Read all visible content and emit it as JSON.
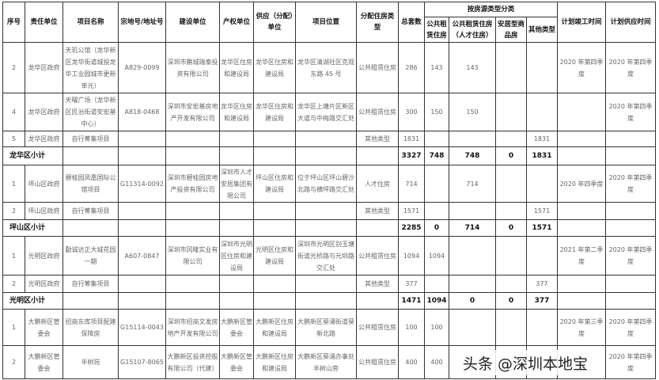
{
  "headers": {
    "no": "序号",
    "unit": "责任单位",
    "name": "项目名称",
    "parcel": "宗地号/地址号",
    "builder": "建设单位",
    "owner": "产权单位",
    "supplier": "供应（分配）单位",
    "location": "项目位置",
    "type": "分配住房类型",
    "total": "总套数",
    "group": "按房源类型分类",
    "pub": "公共租赁住房",
    "talent": "公共租赁住房（人才住房）",
    "resettle": "安居型商品房",
    "other": "其他类型",
    "finish": "计划竣工时间",
    "supply": "计划供应时间"
  },
  "rows": [
    {
      "kind": "row",
      "cells": [
        "2",
        "龙华区政府",
        "天玑公馆（龙华新区龙华街道城投龙华工业园城市更新单元）",
        "A829-0099",
        "深圳市鹏城瑞泰投资有限公司",
        "龙华区住房和建设局",
        "龙华区住房和建设局",
        "龙华区清湖社区克观东路 45 号",
        "公共租赁住房",
        "286",
        "143",
        "143",
        "",
        "",
        "2020 年第四季度",
        "2020 年第四季度"
      ]
    },
    {
      "kind": "row",
      "cells": [
        "4",
        "龙华区政府",
        "天曜广场（龙华新区民治街道安宏基中心）",
        "A818-0468",
        "深圳市安宏基房地产开发有限公司",
        "龙华区住房和建设局",
        "龙华区住房和建设局",
        "龙华区上塘片区新区大道与中梅路交汇处",
        "公共租赁住房",
        "300",
        "150",
        "150",
        "",
        "",
        "",
        "2020 年第四季度"
      ]
    },
    {
      "kind": "row",
      "cells": [
        "5",
        "龙华区政府",
        "自行筹集项目",
        "",
        "",
        "",
        "",
        "",
        "其他类型",
        "1831",
        "",
        "",
        "",
        "1831",
        "",
        ""
      ]
    },
    {
      "kind": "sub",
      "label": "龙华区小计",
      "cells": [
        "3327",
        "748",
        "748",
        "0",
        "1831"
      ]
    },
    {
      "kind": "row",
      "cells": [
        "1",
        "坪山区政府",
        "碧桂园凤凰国际公馆项目",
        "G11314-0092",
        "深圳市碧桂园房地产投资有限公司",
        "深圳市人才安居集团有限公司",
        "坪山区住房和建设局",
        "位于坪山区坪山碧沙北路与横坪路交汇处",
        "人才住房",
        "714",
        "",
        "714",
        "",
        "",
        "2020 年四季度",
        "2020 年第四季度"
      ]
    },
    {
      "kind": "row",
      "cells": [
        "2",
        "坪山区政府",
        "自行筹集项目",
        "",
        "",
        "",
        "",
        "",
        "其他类型",
        "1571",
        "",
        "",
        "",
        "1571",
        "",
        ""
      ]
    },
    {
      "kind": "sub",
      "label": "坪山区小计",
      "cells": [
        "2285",
        "0",
        "714",
        "0",
        "1571"
      ]
    },
    {
      "kind": "row",
      "cells": [
        "1",
        "光明区政府",
        "勤诚达正大城花园一期",
        "A607-0847",
        "深圳市冈隆实业有限公司",
        "深圳市光明区住房和建设局",
        "光明区住房和建设局",
        "深圳市光明区别玉塘街道光桥路与元圳路交汇处",
        "公共租赁住房",
        "1094",
        "1094",
        "",
        "",
        "",
        "2021 年第二季度",
        "2020 年第四季度"
      ]
    },
    {
      "kind": "row",
      "cells": [
        "2",
        "光明区政府",
        "自行筹集项目",
        "",
        "",
        "",
        "",
        "",
        "其他类型",
        "377",
        "",
        "",
        "",
        "377",
        "",
        ""
      ]
    },
    {
      "kind": "sub",
      "label": "光明区小计",
      "cells": [
        "1471",
        "1094",
        "0",
        "0",
        "377"
      ]
    },
    {
      "kind": "row",
      "cells": [
        "1",
        "大鹏新区管委会",
        "招商东库项目配建保障房",
        "G15114-0043",
        "深圳市招商文发房地产开发有限公司",
        "大鹏新区管委会",
        "大鹏新区住房和建设局",
        "大鹏新区葵涌街道葵新北路",
        "公共租赁住房",
        "100",
        "100",
        "",
        "",
        "",
        "2020 年第三季度",
        "2020 年第四季度"
      ]
    },
    {
      "kind": "row",
      "cells": [
        "2",
        "大鹏新区管委会",
        "半树苑",
        "G15107-8065",
        "大鹏新区投资控股有限公司（代建）",
        "大鹏新区管委会",
        "大鹏新区住房和建设局",
        "大鹏新区葵涌办事处半树山旁",
        "公共租赁住房",
        "400",
        "400",
        "",
        "",
        "",
        "",
        "2020 年第四季度"
      ]
    }
  ],
  "watermark": "头条 @深圳本地宝"
}
